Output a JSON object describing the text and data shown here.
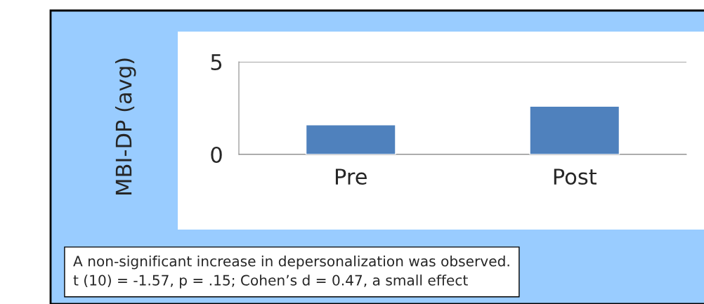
{
  "chart_data": {
    "type": "bar",
    "ylabel": "MBI-DP (avg)",
    "categories": [
      "Pre",
      "Post"
    ],
    "values": [
      1.6,
      2.6
    ],
    "color": "#4f81bd",
    "ylim": [
      0,
      5
    ],
    "yticks": [
      0,
      5
    ],
    "grid": "y",
    "annotations": [
      "A non-significant increase in depersonalization was observed.\nt (10) = -1.57, p = .15; Cohen’s d = 0.47, a small effect"
    ]
  }
}
